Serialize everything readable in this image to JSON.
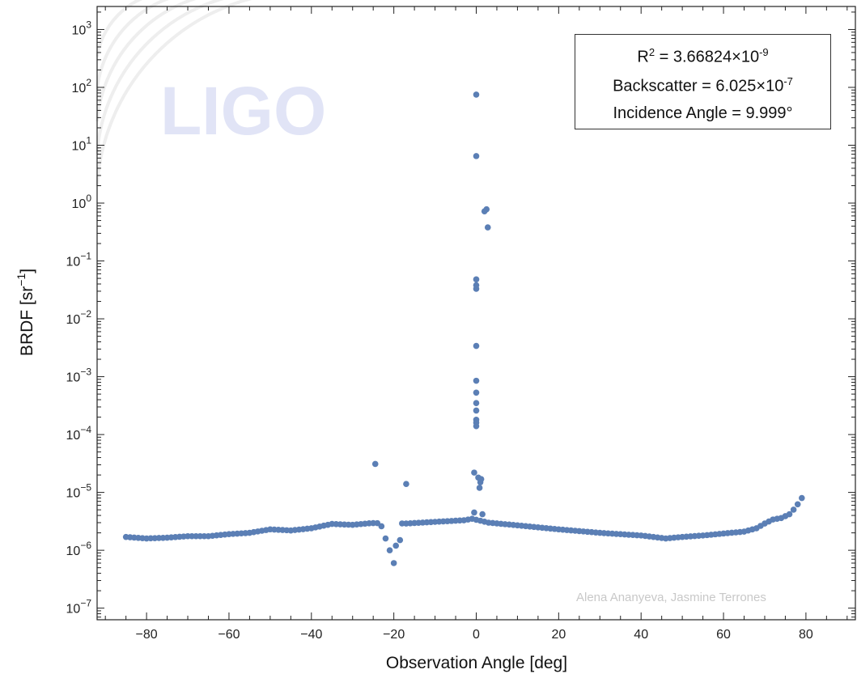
{
  "logo": {
    "text": "LIGO"
  },
  "credit": "Alena Ananyeva, Jasmine Terrones",
  "annotation": {
    "r2_prefix": "R",
    "r2_exp": "2",
    "r2_value": " = 3.66824×10",
    "r2_value_exp": "-9",
    "backscatter_text": "Backscatter  = 6.025×10",
    "backscatter_exp": "-7",
    "incidence_text": "Incidence Angle = 9.999°"
  },
  "chart_data": {
    "type": "scatter",
    "xlabel": "Observation Angle [deg]",
    "ylabel_prefix": "BRDF [sr",
    "ylabel_exp": "−1",
    "ylabel_suffix": "]",
    "xlim": [
      -92,
      92
    ],
    "ylim": [
      6.3e-08,
      2500.0
    ],
    "yscale": "log",
    "grid": false,
    "xticks": [
      -80,
      -60,
      -40,
      -20,
      0,
      20,
      40,
      60,
      80
    ],
    "xtick_labels": [
      "−80",
      "−60",
      "−40",
      "−20",
      "0",
      "20",
      "40",
      "60",
      "80"
    ],
    "yticks": [
      {
        "value": 1e-07,
        "base": "10",
        "exp": "-7"
      },
      {
        "value": 1e-06,
        "base": "10",
        "exp": "-6"
      },
      {
        "value": 1e-05,
        "base": "10",
        "exp": "-5"
      },
      {
        "value": 0.0001,
        "base": "10",
        "exp": "-4"
      },
      {
        "value": 0.001,
        "base": "10",
        "exp": "-3"
      },
      {
        "value": 0.01,
        "base": "10",
        "exp": "-2"
      },
      {
        "value": 0.1,
        "base": "10",
        "exp": "-1"
      },
      {
        "value": 1,
        "base": "10",
        "exp": "0"
      },
      {
        "value": 10,
        "base": "10",
        "exp": "1"
      },
      {
        "value": 100,
        "base": "10",
        "exp": "2"
      },
      {
        "value": 1000,
        "base": "10",
        "exp": "3"
      }
    ],
    "marker_color": "#5b7fb5",
    "baseline_profile": [
      [
        -85,
        1.7e-06
      ],
      [
        -80,
        1.6e-06
      ],
      [
        -75,
        1.65e-06
      ],
      [
        -70,
        1.75e-06
      ],
      [
        -65,
        1.75e-06
      ],
      [
        -60,
        1.9e-06
      ],
      [
        -55,
        2e-06
      ],
      [
        -50,
        2.3e-06
      ],
      [
        -45,
        2.2e-06
      ],
      [
        -40,
        2.4e-06
      ],
      [
        -35,
        2.85e-06
      ],
      [
        -30,
        2.75e-06
      ],
      [
        -25.5,
        2.95e-06
      ],
      [
        -17,
        2.9e-06
      ],
      [
        -10,
        3.1e-06
      ],
      [
        -3,
        3.3e-06
      ],
      [
        -1,
        3.5e-06
      ],
      [
        3,
        3e-06
      ],
      [
        10,
        2.7e-06
      ],
      [
        20,
        2.3e-06
      ],
      [
        30,
        2e-06
      ],
      [
        40,
        1.8e-06
      ],
      [
        46,
        1.6e-06
      ],
      [
        50,
        1.7e-06
      ],
      [
        55,
        1.8e-06
      ],
      [
        60,
        1.95e-06
      ],
      [
        65,
        2.1e-06
      ],
      [
        68,
        2.4e-06
      ],
      [
        70,
        2.9e-06
      ],
      [
        72,
        3.4e-06
      ],
      [
        74,
        3.6e-06
      ],
      [
        76,
        4.2e-06
      ],
      [
        77.5,
        5.5e-06
      ],
      [
        79,
        8e-06
      ],
      [
        79.5,
        9.5e-06
      ]
    ],
    "baseline_step": 1,
    "extra_points": [
      [
        -24.5,
        3.1e-05
      ],
      [
        -17,
        1.4e-05
      ],
      [
        -23,
        2.6e-06
      ],
      [
        -22,
        1.6e-06
      ],
      [
        -21,
        1e-06
      ],
      [
        -20,
        6e-07
      ],
      [
        -19.5,
        1.2e-06
      ],
      [
        -18.5,
        1.5e-06
      ],
      [
        0,
        75
      ],
      [
        0,
        6.5
      ],
      [
        2,
        0.72
      ],
      [
        2.5,
        0.78
      ],
      [
        2.8,
        0.38
      ],
      [
        0,
        0.048
      ],
      [
        0,
        0.038
      ],
      [
        0,
        0.033
      ],
      [
        0,
        0.0034
      ],
      [
        0,
        0.00085
      ],
      [
        0,
        0.00053
      ],
      [
        0,
        0.00035
      ],
      [
        0,
        0.00026
      ],
      [
        0,
        0.00018
      ],
      [
        0,
        0.00016
      ],
      [
        0,
        0.00014
      ],
      [
        -0.5,
        2.2e-05
      ],
      [
        0.5,
        1.8e-05
      ],
      [
        1,
        1.5e-05
      ],
      [
        0.8,
        1.2e-05
      ],
      [
        1.2,
        1.7e-05
      ],
      [
        -0.5,
        4.5e-06
      ],
      [
        1.5,
        4.2e-06
      ]
    ]
  }
}
